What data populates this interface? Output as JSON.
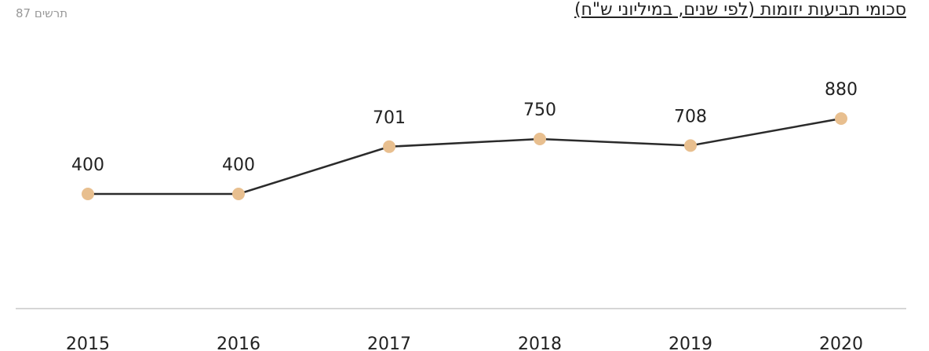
{
  "chart_data": {
    "type": "line",
    "title": "סכומי תביעות יזומות (לפי שנים, במיליוני ש\"ח)",
    "subtitle": "תרשים 87",
    "categories": [
      "2015",
      "2016",
      "2017",
      "2018",
      "2019",
      "2020"
    ],
    "series": [
      {
        "name": null,
        "color": "#2b2b2b",
        "marker_color": "#e8bf8f",
        "values": [
          400,
          400,
          701,
          750,
          708,
          880
        ]
      }
    ],
    "ylim": [
      -330,
      1435
    ]
  }
}
